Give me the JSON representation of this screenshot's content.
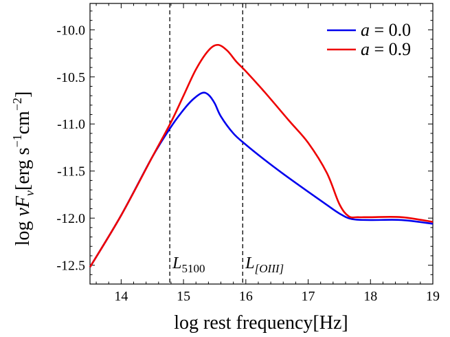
{
  "chart_data": {
    "type": "line",
    "xlabel": "log rest frequency[Hz]",
    "ylabel": "log νF_ν[erg s⁻¹cm⁻²]",
    "xlim": [
      13.5,
      19
    ],
    "ylim": [
      -12.7,
      -9.72
    ],
    "xticks": [
      14,
      15,
      16,
      17,
      18,
      19
    ],
    "yticks": [
      -10.0,
      -10.5,
      -11.0,
      -11.5,
      -12.0,
      -12.5
    ],
    "xtick_labels": [
      "14",
      "15",
      "16",
      "17",
      "18",
      "19"
    ],
    "ytick_labels": [
      "-10.0",
      "-10.5",
      "-11.0",
      "-11.5",
      "-12.0",
      "-12.5"
    ],
    "grid": false,
    "legend_position": "top-right",
    "series": [
      {
        "name": "a = 0.0",
        "color": "#0000ee",
        "x": [
          13.5,
          14.0,
          14.5,
          14.8,
          15.0,
          15.15,
          15.3,
          15.4,
          15.5,
          15.6,
          15.8,
          16.0,
          16.3,
          16.6,
          17.0,
          17.3,
          17.5,
          17.7,
          18.0,
          18.5,
          19.0
        ],
        "y": [
          -12.52,
          -11.97,
          -11.35,
          -11.03,
          -10.85,
          -10.74,
          -10.67,
          -10.69,
          -10.78,
          -10.92,
          -11.1,
          -11.22,
          -11.38,
          -11.53,
          -11.72,
          -11.86,
          -11.95,
          -12.01,
          -12.02,
          -12.02,
          -12.06
        ]
      },
      {
        "name": "a = 0.9",
        "color": "#ee0000",
        "x": [
          13.5,
          14.0,
          14.5,
          14.8,
          15.0,
          15.2,
          15.4,
          15.55,
          15.7,
          15.85,
          16.0,
          16.3,
          16.7,
          17.0,
          17.3,
          17.5,
          17.65,
          17.8,
          18.0,
          18.5,
          19.0
        ],
        "y": [
          -12.52,
          -11.97,
          -11.35,
          -10.98,
          -10.7,
          -10.42,
          -10.22,
          -10.16,
          -10.22,
          -10.34,
          -10.44,
          -10.66,
          -10.97,
          -11.2,
          -11.52,
          -11.85,
          -11.98,
          -11.99,
          -11.99,
          -11.99,
          -12.04
        ]
      }
    ],
    "vlines": [
      {
        "x": 14.78,
        "label_main": "L",
        "label_sub": "5100"
      },
      {
        "x": 15.95,
        "label_main": "L",
        "label_sub": "[OIII]"
      }
    ],
    "legend": [
      {
        "italic": "a",
        "rest": " = 0.0",
        "color": "#0000ee"
      },
      {
        "italic": "a",
        "rest": " = 0.9",
        "color": "#ee0000"
      }
    ]
  }
}
